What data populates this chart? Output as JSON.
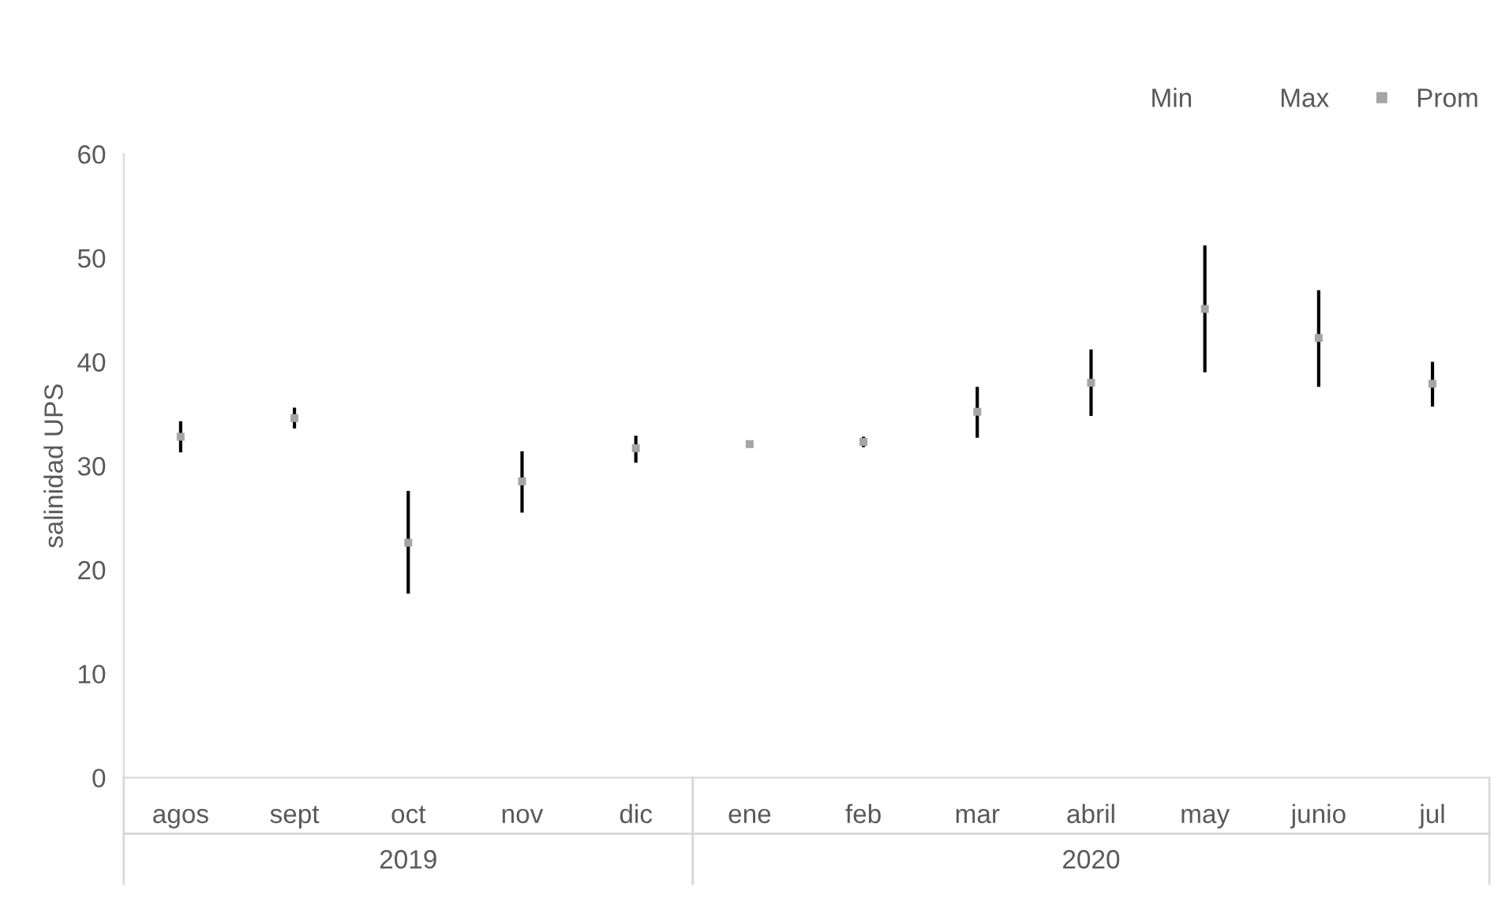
{
  "chart_data": {
    "type": "scatter",
    "ylabel": "salinidad UPS",
    "categories": [
      "agos",
      "sept",
      "oct",
      "nov",
      "dic",
      "ene",
      "feb",
      "mar",
      "abril",
      "may",
      "junio",
      "jul"
    ],
    "series": [
      {
        "name": "Prom",
        "marker": "square",
        "color": "#a5a5a5",
        "values": [
          32.8,
          34.6,
          22.6,
          28.5,
          31.7,
          32.1,
          32.3,
          35.2,
          38.0,
          45.1,
          42.3,
          37.9
        ],
        "errors": [
          [
            31.3,
            34.3
          ],
          [
            33.6,
            35.6
          ],
          [
            17.7,
            27.6
          ],
          [
            25.5,
            31.4
          ],
          [
            30.3,
            32.9
          ],
          [
            32.0,
            32.2
          ],
          [
            31.8,
            32.8
          ],
          [
            32.7,
            37.6
          ],
          [
            34.8,
            41.2
          ],
          [
            39.0,
            51.2
          ],
          [
            37.6,
            46.9
          ],
          [
            35.7,
            40.0
          ]
        ]
      }
    ],
    "ylim": [
      0,
      60
    ],
    "yticks": [
      0,
      10,
      20,
      30,
      40,
      50,
      60
    ],
    "grid": false,
    "legend": "top right",
    "annotations": [
      "Min",
      "Max",
      "2019",
      "2020"
    ]
  }
}
